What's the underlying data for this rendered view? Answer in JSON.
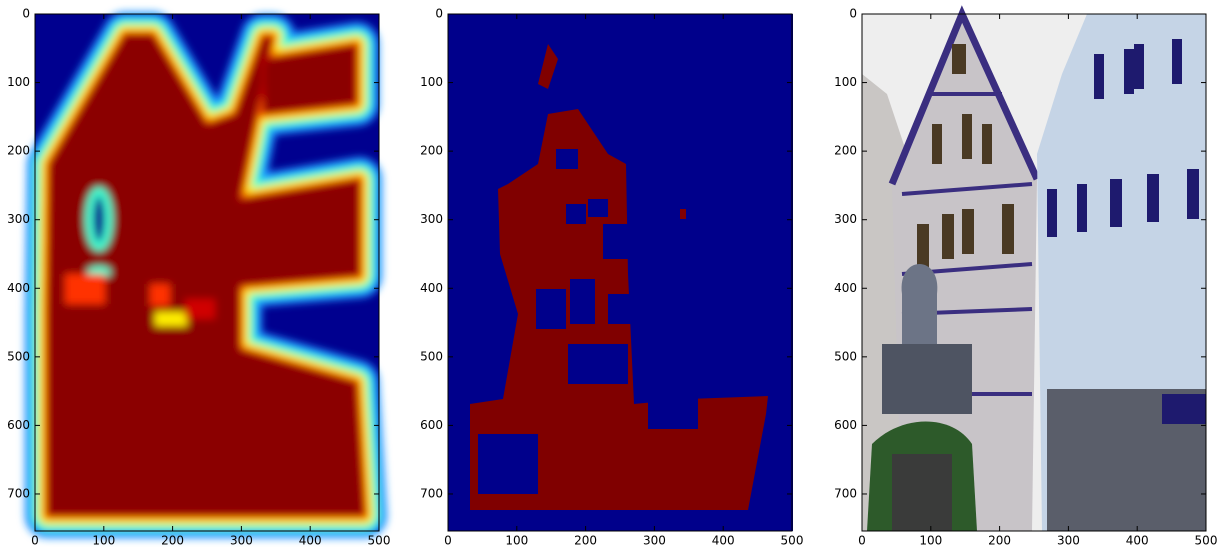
{
  "chart_data": [
    {
      "type": "image",
      "xlim": [
        0,
        500
      ],
      "ylim": [
        754,
        0
      ],
      "xticks": [
        0,
        100,
        200,
        300,
        400,
        500
      ],
      "yticks": [
        0,
        100,
        200,
        300,
        400,
        500,
        600,
        700
      ]
    },
    {
      "type": "image",
      "xlim": [
        0,
        500
      ],
      "ylim": [
        754,
        0
      ],
      "xticks": [
        0,
        100,
        200,
        300,
        400,
        500
      ],
      "yticks": [
        0,
        100,
        200,
        300,
        400,
        500,
        600,
        700
      ]
    },
    {
      "type": "image",
      "xlim": [
        0,
        500
      ],
      "ylim": [
        754,
        0
      ],
      "xticks": [
        0,
        100,
        200,
        300,
        400,
        500
      ],
      "yticks": [
        0,
        100,
        200,
        300,
        400,
        500,
        600,
        700
      ]
    }
  ]
}
